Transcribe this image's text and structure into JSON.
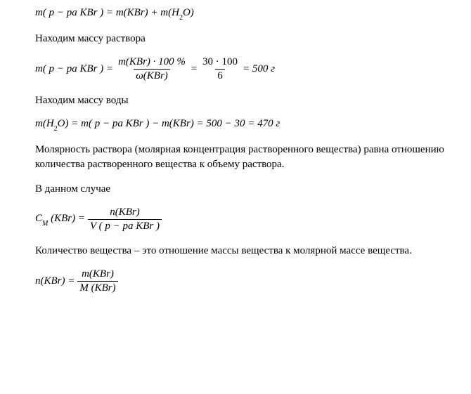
{
  "eq1": {
    "lhs": "m( p − ра KBr ) = m(KBr) + m(H",
    "sub1": "2",
    "rhs": "O)"
  },
  "text1": "Находим массу раствора",
  "eq2": {
    "lhs": "m( p − ра KBr ) = ",
    "frac1_num": "m(KBr) · 100 %",
    "frac1_den_omega": "ω",
    "frac1_den_rest": "(KBr)",
    "mid": " = ",
    "frac2_num": "30 · 100",
    "frac2_den": "6",
    "rhs": " = 500  г"
  },
  "text2": "Находим массу воды",
  "eq3": {
    "lhs": "m(H",
    "sub1": "2",
    "mid": "O) = m( p − ра KBr ) − m(KBr) = 500 − 30 = 470  г"
  },
  "text3": "Молярность раствора (молярная концентрация растворенного вещества) равна отношению количества растворенного вещества к объему раствора.",
  "text4": "В данном случае",
  "eq4": {
    "lhs_c": "C",
    "lhs_sub": "M",
    "lhs_rest": " (KBr) = ",
    "frac_num": "n(KBr)",
    "frac_den": "V ( p − ра KBr )"
  },
  "text5": "Количество вещества – это отношение массы вещества к молярной массе вещества.",
  "eq5": {
    "lhs": "n(KBr) = ",
    "frac_num": "m(KBr)",
    "frac_den": "M (KBr)"
  }
}
